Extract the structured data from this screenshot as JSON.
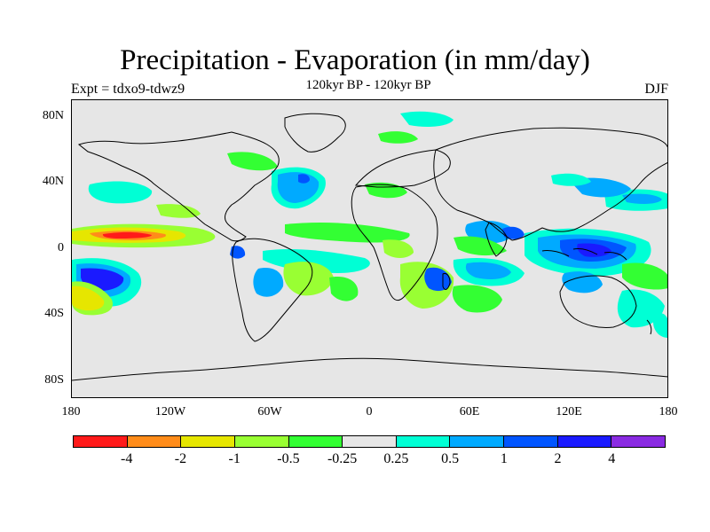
{
  "title": "Precipitation - Evaporation (in mm/day)",
  "subtitle": "120kyr BP - 120kyr BP",
  "experiment": "Expt = tdxo9-tdwz9",
  "season": "DJF",
  "map": {
    "ocean_land_background": "#e6e6e6",
    "y_labels": [
      "80N",
      "40N",
      "0",
      "40S",
      "80S"
    ],
    "x_labels": [
      "180",
      "120W",
      "60W",
      "0",
      "60E",
      "120E",
      "180"
    ]
  },
  "colorbar": {
    "colors": [
      "#ff1a1a",
      "#ff8c1a",
      "#e6e600",
      "#99ff33",
      "#33ff33",
      "#e6e6e6",
      "#00ffd5",
      "#00aaff",
      "#0055ff",
      "#1a1aff",
      "#8a2be2"
    ],
    "labels": [
      "-4",
      "-2",
      "-1",
      "-0.5",
      "-0.25",
      "0.25",
      "0.5",
      "1",
      "2",
      "4"
    ]
  },
  "regions": [
    {
      "color": "#1a1aff",
      "name": "south-pacific-max"
    },
    {
      "color": "#00aaff",
      "name": "south-pacific-ring"
    },
    {
      "color": "#e6e600",
      "name": "southeast-pacific-dry"
    },
    {
      "color": "#ff8c1a",
      "name": "equatorial-pacific-dry"
    },
    {
      "color": "#ff1a1a",
      "name": "equatorial-pacific-core"
    },
    {
      "color": "#0055ff",
      "name": "maritime-continent"
    },
    {
      "color": "#00ffd5",
      "name": "north-pacific-wet"
    },
    {
      "color": "#33ff33",
      "name": "tropical-atlantic"
    },
    {
      "color": "#00aaff",
      "name": "north-atlantic-wet"
    },
    {
      "color": "#0055ff",
      "name": "indian-ocean-wet"
    },
    {
      "color": "#99ff33",
      "name": "southern-africa"
    },
    {
      "color": "#00ffd5",
      "name": "australia-east"
    }
  ]
}
